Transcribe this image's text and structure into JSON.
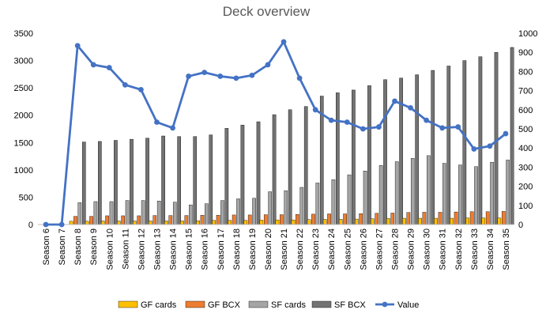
{
  "chart_data": {
    "type": "bar",
    "title": "Deck overview",
    "categories": [
      "Season 6",
      "Season 7",
      "Season 8",
      "Season 9",
      "Season 10",
      "Season 11",
      "Season 12",
      "Season 13",
      "Season 14",
      "Season 15",
      "Season 16",
      "Season 17",
      "Season 18",
      "Season 19",
      "Season 20",
      "Season 21",
      "Season 22",
      "Season 23",
      "Season 24",
      "Season 25",
      "Season 26",
      "Season 27",
      "Season 28",
      "Season 29",
      "Season 30",
      "Season 31",
      "Season 32",
      "Season 33",
      "Season 34",
      "Season 35"
    ],
    "series": [
      {
        "name": "GF cards",
        "color": "#ffc000",
        "axis": "left",
        "type": "bar",
        "values": [
          0,
          0,
          60,
          60,
          65,
          65,
          65,
          65,
          65,
          65,
          70,
          75,
          75,
          75,
          80,
          85,
          85,
          90,
          95,
          95,
          100,
          105,
          110,
          115,
          115,
          115,
          115,
          120,
          120,
          120
        ]
      },
      {
        "name": "GF BCX",
        "color": "#ed7d31",
        "axis": "left",
        "type": "bar",
        "values": [
          0,
          0,
          150,
          150,
          160,
          160,
          160,
          165,
          165,
          165,
          170,
          170,
          175,
          175,
          180,
          180,
          185,
          190,
          195,
          195,
          200,
          205,
          210,
          220,
          225,
          225,
          230,
          235,
          235,
          240
        ]
      },
      {
        "name": "SF cards",
        "color": "#a5a5a5",
        "axis": "left",
        "type": "bar",
        "values": [
          0,
          0,
          400,
          420,
          420,
          440,
          440,
          430,
          410,
          360,
          380,
          440,
          470,
          480,
          600,
          620,
          680,
          760,
          820,
          910,
          980,
          1080,
          1150,
          1210,
          1260,
          1120,
          1090,
          1060,
          1140,
          1180
        ]
      },
      {
        "name": "SF BCX",
        "color": "#737373",
        "axis": "left",
        "type": "bar",
        "values": [
          0,
          0,
          1510,
          1520,
          1540,
          1560,
          1580,
          1620,
          1610,
          1610,
          1640,
          1760,
          1820,
          1880,
          2010,
          2100,
          2160,
          2350,
          2410,
          2460,
          2540,
          2650,
          2680,
          2740,
          2820,
          2900,
          3000,
          3070,
          3150,
          3240
        ]
      },
      {
        "name": "Value",
        "color": "#4472c4",
        "axis": "right",
        "type": "line",
        "values": [
          0,
          0,
          935,
          835,
          820,
          730,
          705,
          535,
          505,
          775,
          795,
          775,
          765,
          780,
          835,
          955,
          765,
          600,
          545,
          535,
          500,
          510,
          645,
          610,
          545,
          505,
          510,
          395,
          410,
          475
        ]
      }
    ],
    "y_left": {
      "min": 0,
      "max": 3500,
      "ticks": [
        0,
        500,
        1000,
        1500,
        2000,
        2500,
        3000,
        3500
      ]
    },
    "y_right": {
      "min": 0,
      "max": 1000,
      "ticks": [
        0,
        100,
        200,
        300,
        400,
        500,
        600,
        700,
        800,
        900,
        1000
      ]
    },
    "grid": false,
    "legend_position": "bottom"
  }
}
